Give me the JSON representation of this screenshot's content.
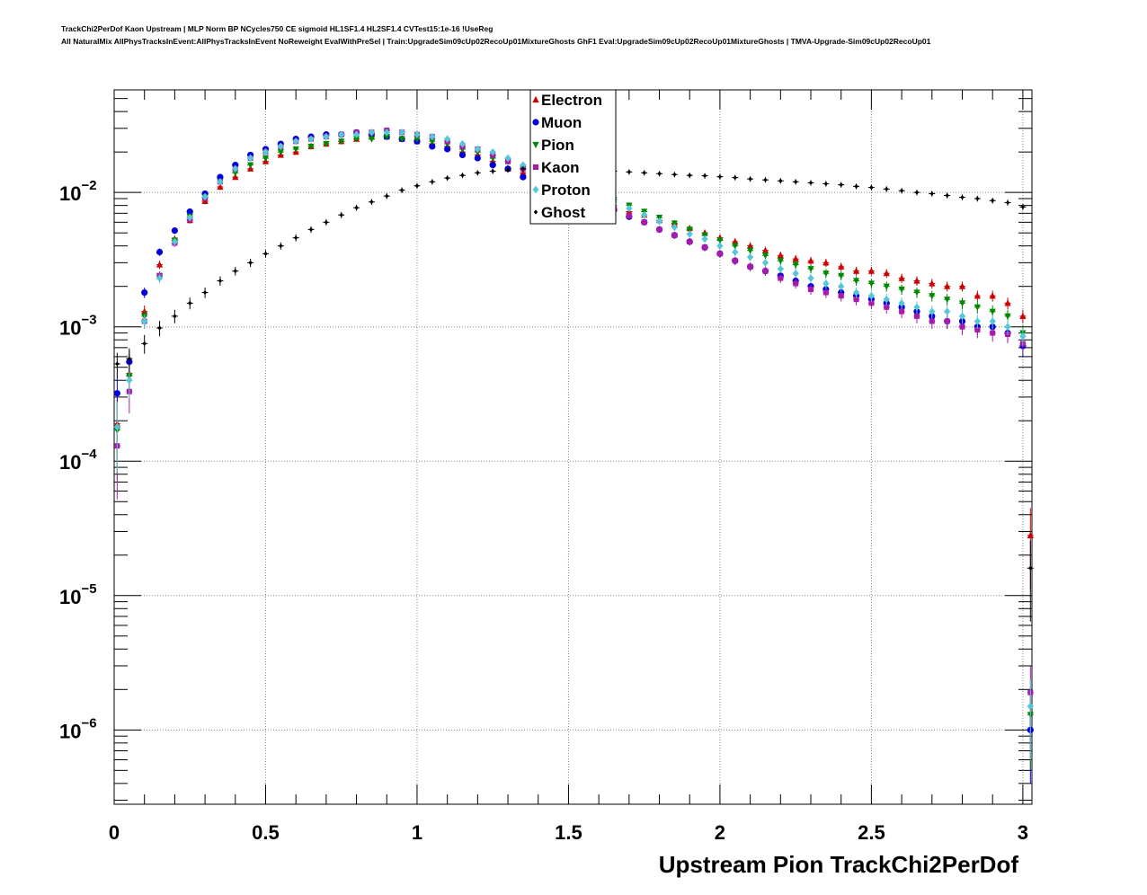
{
  "header": {
    "line1": "TrackChi2PerDof Kaon Upstream | MLP Norm BP NCycles750 CE sigmoid HL1SF1.4 HL2SF1.4 CVTest15:1e-16 !UseReg",
    "line2": "All NaturalMix AllPhysTracksInEvent:AllPhysTracksInEvent NoReweight EvalWithPreSel | Train:UpgradeSim09cUp02RecoUp01MixtureGhosts GhF1 Eval:UpgradeSim09cUp02RecoUp01MixtureGhosts | TMVA-Upgrade-Sim09cUp02RecoUp01"
  },
  "chart_data": {
    "type": "scatter",
    "title": "",
    "xlabel": "Upstream Pion TrackChi2PerDof",
    "ylabel": "",
    "xlim": [
      0,
      3.03
    ],
    "ylim": [
      2.8e-07,
      0.058
    ],
    "yscale": "log",
    "grid": true,
    "legend_position": "top-center",
    "x_ticks": [
      "0",
      "0.5",
      "1",
      "1.5",
      "2",
      "2.5",
      "3"
    ],
    "y_ticks": [
      {
        "base": "10",
        "exp": "−2",
        "value": 0.01
      },
      {
        "base": "10",
        "exp": "−3",
        "value": 0.001
      },
      {
        "base": "10",
        "exp": "−4",
        "value": 0.0001
      },
      {
        "base": "10",
        "exp": "−5",
        "value": 1e-05
      },
      {
        "base": "10",
        "exp": "−6",
        "value": 1e-06
      }
    ],
    "x": [
      0.01,
      0.05,
      0.1,
      0.15,
      0.2,
      0.25,
      0.3,
      0.35,
      0.4,
      0.45,
      0.5,
      0.55,
      0.6,
      0.65,
      0.7,
      0.75,
      0.8,
      0.85,
      0.9,
      0.95,
      1.0,
      1.05,
      1.1,
      1.15,
      1.2,
      1.25,
      1.3,
      1.35,
      1.4,
      1.45,
      1.5,
      1.55,
      1.6,
      1.65,
      1.7,
      1.75,
      1.8,
      1.85,
      1.9,
      1.95,
      2.0,
      2.05,
      2.1,
      2.15,
      2.2,
      2.25,
      2.3,
      2.35,
      2.4,
      2.45,
      2.5,
      2.55,
      2.6,
      2.65,
      2.7,
      2.75,
      2.8,
      2.85,
      2.9,
      2.95,
      3.0,
      3.025
    ],
    "series": [
      {
        "name": "Electron",
        "color": "#cc0000",
        "marker": "triangle-up",
        "values": [
          0.00019,
          0.00045,
          0.0013,
          0.0029,
          0.0045,
          0.0062,
          0.0086,
          0.011,
          0.013,
          0.015,
          0.017,
          0.019,
          0.02,
          0.022,
          0.023,
          0.024,
          0.025,
          0.026,
          0.026,
          0.025,
          0.024,
          0.023,
          0.022,
          0.02,
          0.019,
          0.017,
          0.015,
          0.014,
          0.013,
          0.012,
          0.011,
          0.0098,
          0.0089,
          0.008,
          0.0072,
          0.0068,
          0.0062,
          0.0058,
          0.0054,
          0.005,
          0.0046,
          0.0043,
          0.004,
          0.0037,
          0.0034,
          0.0032,
          0.0031,
          0.003,
          0.0028,
          0.0026,
          0.0026,
          0.0025,
          0.0023,
          0.0022,
          0.0021,
          0.002,
          0.002,
          0.0017,
          0.0017,
          0.0015,
          0.0012,
          2.8e-05
        ]
      },
      {
        "name": "Muon",
        "color": "#0000dd",
        "marker": "circle",
        "values": [
          0.00032,
          0.00055,
          0.0018,
          0.0036,
          0.0052,
          0.0072,
          0.0098,
          0.013,
          0.016,
          0.019,
          0.021,
          0.023,
          0.025,
          0.026,
          0.027,
          0.027,
          0.028,
          0.027,
          0.026,
          0.025,
          0.024,
          0.022,
          0.021,
          0.019,
          0.018,
          0.016,
          0.015,
          0.013,
          0.012,
          0.011,
          0.01,
          0.0092,
          0.0082,
          0.0074,
          0.0066,
          0.006,
          0.0053,
          0.0048,
          0.0043,
          0.0039,
          0.0035,
          0.0031,
          0.0028,
          0.0026,
          0.0024,
          0.0022,
          0.002,
          0.0019,
          0.0018,
          0.0017,
          0.0016,
          0.0015,
          0.0014,
          0.0013,
          0.0012,
          0.0011,
          0.0011,
          0.001,
          0.001,
          0.0009,
          0.00072,
          1e-06
        ]
      },
      {
        "name": "Pion",
        "color": "#008800",
        "marker": "triangle-down",
        "values": [
          0.00017,
          0.00043,
          0.0012,
          0.0024,
          0.0044,
          0.0066,
          0.0092,
          0.012,
          0.014,
          0.016,
          0.018,
          0.02,
          0.021,
          0.022,
          0.023,
          0.024,
          0.025,
          0.025,
          0.026,
          0.025,
          0.025,
          0.024,
          0.023,
          0.021,
          0.02,
          0.018,
          0.017,
          0.015,
          0.014,
          0.013,
          0.012,
          0.011,
          0.0098,
          0.0088,
          0.008,
          0.0072,
          0.0065,
          0.0059,
          0.0053,
          0.0048,
          0.0044,
          0.004,
          0.0037,
          0.0034,
          0.0031,
          0.0029,
          0.0027,
          0.0025,
          0.0024,
          0.0022,
          0.0021,
          0.002,
          0.0019,
          0.0018,
          0.0017,
          0.0016,
          0.0015,
          0.0014,
          0.0013,
          0.0012,
          0.0009,
          1.3e-06
        ]
      },
      {
        "name": "Kaon",
        "color": "#aa1aaa",
        "marker": "square",
        "values": [
          0.00013,
          0.00033,
          0.0011,
          0.0024,
          0.0042,
          0.0063,
          0.0091,
          0.012,
          0.015,
          0.018,
          0.02,
          0.022,
          0.024,
          0.025,
          0.026,
          0.027,
          0.028,
          0.028,
          0.029,
          0.028,
          0.027,
          0.026,
          0.024,
          0.022,
          0.021,
          0.019,
          0.017,
          0.015,
          0.014,
          0.012,
          0.011,
          0.0095,
          0.0085,
          0.0075,
          0.0067,
          0.006,
          0.0053,
          0.0048,
          0.0043,
          0.0039,
          0.0035,
          0.0031,
          0.0028,
          0.0026,
          0.0023,
          0.0021,
          0.0019,
          0.0018,
          0.0017,
          0.0016,
          0.0015,
          0.0014,
          0.0013,
          0.0012,
          0.0011,
          0.0011,
          0.001,
          0.00095,
          0.0009,
          0.00088,
          0.00075,
          1.9e-06
        ]
      },
      {
        "name": "Proton",
        "color": "#55c8d8",
        "marker": "diamond",
        "values": [
          0.00018,
          0.0004,
          0.0011,
          0.0023,
          0.0043,
          0.0065,
          0.0093,
          0.012,
          0.015,
          0.018,
          0.02,
          0.022,
          0.024,
          0.025,
          0.026,
          0.027,
          0.027,
          0.028,
          0.028,
          0.028,
          0.027,
          0.026,
          0.025,
          0.023,
          0.021,
          0.02,
          0.018,
          0.016,
          0.015,
          0.013,
          0.012,
          0.011,
          0.0095,
          0.0085,
          0.0076,
          0.0068,
          0.0061,
          0.0055,
          0.0049,
          0.0045,
          0.004,
          0.0036,
          0.0033,
          0.003,
          0.0027,
          0.0025,
          0.0023,
          0.0021,
          0.002,
          0.0018,
          0.0017,
          0.0016,
          0.0015,
          0.0014,
          0.0013,
          0.0013,
          0.0012,
          0.0011,
          0.0011,
          0.001,
          0.00085,
          1.5e-06
        ]
      },
      {
        "name": "Ghost",
        "color": "#000000",
        "marker": "small-diamond",
        "values": [
          0.00053,
          0.00058,
          0.00075,
          0.00098,
          0.0012,
          0.0015,
          0.0018,
          0.0022,
          0.0026,
          0.003,
          0.0035,
          0.004,
          0.0046,
          0.0053,
          0.006,
          0.0068,
          0.0077,
          0.0085,
          0.0094,
          0.0104,
          0.0112,
          0.012,
          0.0128,
          0.0134,
          0.014,
          0.0144,
          0.0147,
          0.015,
          0.0151,
          0.0151,
          0.015,
          0.0148,
          0.0146,
          0.0144,
          0.0142,
          0.014,
          0.0138,
          0.0136,
          0.0134,
          0.0133,
          0.0131,
          0.0129,
          0.0126,
          0.0124,
          0.0122,
          0.012,
          0.0118,
          0.0116,
          0.0114,
          0.0111,
          0.0109,
          0.0106,
          0.0103,
          0.01,
          0.0098,
          0.0095,
          0.0092,
          0.009,
          0.0087,
          0.0084,
          0.0078,
          1.6e-05
        ]
      }
    ]
  }
}
